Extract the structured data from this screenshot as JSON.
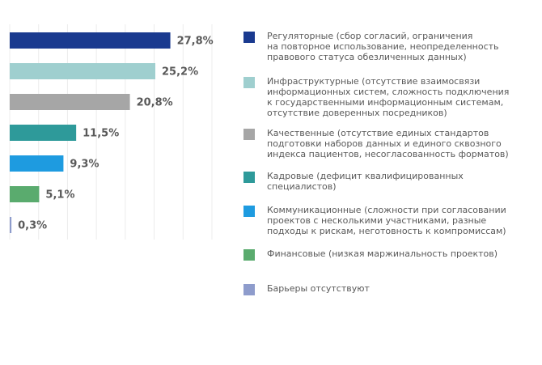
{
  "chart_data": {
    "type": "bar",
    "orientation": "horizontal",
    "categories": [
      "Регуляторные (сбор согласий, ограничения\nна повторное использование, неопределенность\nправового статуса обезличенных данных)",
      "Инфраструктурные (отсутствие взаимосвязи\nинформационных систем, сложность подключения\nк государственными информационным системам,\nотсутствие доверенных посредников)",
      "Качественные (отсутствие единых стандартов\nподготовки наборов данных и единого сквозного\nиндекса пациентов, несогласованность форматов)",
      "Кадровые (дефицит квалифицированных\nспециалистов)",
      "Коммуникационные (сложности при согласовании\nпроектов с несколькими участниками, разные\nподходы к рискам, неготовность к компромиссам)",
      "Финансовые (низкая маржинальность проектов)",
      "Барьеры отсутствуют"
    ],
    "values": [
      27.8,
      25.2,
      20.8,
      11.5,
      9.3,
      5.1,
      0.3
    ],
    "value_labels": [
      "27,8%",
      "25,2%",
      "20,8%",
      "11,5%",
      "9,3%",
      "5,1%",
      "0,3%"
    ],
    "colors": [
      "#1a3a8f",
      "#9fcfcf",
      "#a6a6a6",
      "#2e9a9a",
      "#1e9be0",
      "#5aab6e",
      "#8e9ccc"
    ],
    "xlim": [
      0,
      35
    ],
    "xticks": [
      0,
      5,
      10,
      15,
      20,
      25,
      30,
      35
    ],
    "grid": true
  }
}
